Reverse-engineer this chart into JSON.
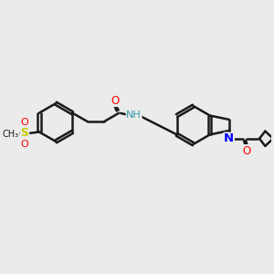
{
  "bg_color": "#ebebeb",
  "bond_color": "#1a1a1a",
  "bond_width": 1.8,
  "dbo": 0.055,
  "figsize": [
    3.0,
    3.0
  ],
  "dpi": 100,
  "xlim": [
    0,
    10
  ],
  "ylim": [
    0,
    10
  ]
}
